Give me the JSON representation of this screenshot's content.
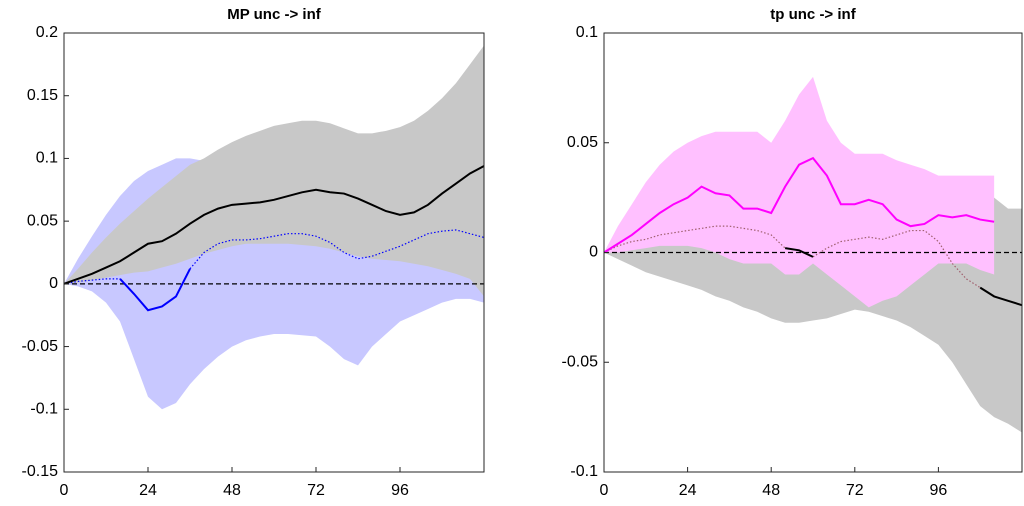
{
  "chart_data": [
    {
      "type": "line",
      "title": "MP unc -> inf",
      "x": [
        0,
        4,
        8,
        12,
        16,
        20,
        24,
        28,
        32,
        36,
        40,
        44,
        48,
        52,
        56,
        60,
        64,
        68,
        72,
        76,
        80,
        84,
        88,
        92,
        96,
        100,
        104,
        108,
        112,
        116,
        120
      ],
      "xlim": [
        0,
        120
      ],
      "xticks": [
        0,
        24,
        48,
        72,
        96
      ],
      "ylim": [
        -0.15,
        0.2
      ],
      "yticks": [
        -0.15,
        -0.1,
        -0.05,
        0,
        0.05,
        0.1,
        0.15,
        0.2
      ],
      "hline": 0,
      "bands": [
        {
          "color": "#c8c8ff",
          "upper": [
            0,
            0.02,
            0.038,
            0.055,
            0.07,
            0.082,
            0.09,
            0.095,
            0.1,
            0.1,
            0.098,
            0.095,
            0.092,
            0.09,
            0.09,
            0.09,
            0.088,
            0.086,
            0.083,
            0.08,
            0.078,
            0.076,
            0.075,
            0.076,
            0.078,
            0.08,
            0.082,
            0.08,
            0.078,
            0.075,
            0.072
          ],
          "lower": [
            0,
            -0.002,
            -0.006,
            -0.015,
            -0.03,
            -0.06,
            -0.09,
            -0.1,
            -0.095,
            -0.08,
            -0.068,
            -0.058,
            -0.05,
            -0.045,
            -0.042,
            -0.04,
            -0.04,
            -0.041,
            -0.042,
            -0.05,
            -0.06,
            -0.065,
            -0.05,
            -0.04,
            -0.03,
            -0.025,
            -0.02,
            -0.015,
            -0.012,
            -0.012,
            -0.015
          ]
        },
        {
          "color": "#c8c8c8",
          "upper": [
            0,
            0.012,
            0.025,
            0.037,
            0.048,
            0.058,
            0.068,
            0.077,
            0.086,
            0.095,
            0.1,
            0.107,
            0.113,
            0.118,
            0.122,
            0.126,
            0.128,
            0.13,
            0.13,
            0.128,
            0.124,
            0.12,
            0.12,
            0.122,
            0.125,
            0.13,
            0.138,
            0.148,
            0.16,
            0.175,
            0.19
          ],
          "lower": [
            0,
            0.001,
            0.003,
            0.005,
            0.007,
            0.009,
            0.01,
            0.013,
            0.016,
            0.02,
            0.024,
            0.027,
            0.03,
            0.032,
            0.032,
            0.032,
            0.032,
            0.031,
            0.03,
            0.028,
            0.025,
            0.022,
            0.02,
            0.019,
            0.018,
            0.016,
            0.014,
            0.011,
            0.008,
            0.004,
            -0.01
          ]
        }
      ],
      "series": [
        {
          "color": "#0000ff",
          "style": "dotted",
          "values": [
            0,
            0.002,
            0.003,
            0.004,
            0.004,
            null,
            null,
            null,
            null,
            0.012,
            0.025,
            0.032,
            0.035,
            0.035,
            0.036,
            0.038,
            0.04,
            0.04,
            0.038,
            0.033,
            0.025,
            0.02,
            0.022,
            0.026,
            0.03,
            0.035,
            0.04,
            0.042,
            0.043,
            0.04,
            0.037
          ]
        },
        {
          "color": "#000000",
          "style": "solid",
          "values": [
            0,
            0.004,
            0.008,
            0.013,
            0.018,
            0.025,
            0.032,
            0.034,
            0.04,
            0.048,
            0.055,
            0.06,
            0.063,
            0.064,
            0.065,
            0.067,
            0.07,
            0.073,
            0.075,
            0.073,
            0.072,
            0.068,
            0.063,
            0.058,
            0.055,
            0.057,
            0.063,
            0.072,
            0.08,
            0.088,
            0.094
          ]
        },
        {
          "color": "#0000ff",
          "style": "solid",
          "values": [
            null,
            null,
            null,
            null,
            0.004,
            -0.008,
            -0.021,
            -0.018,
            -0.01,
            0.012,
            null,
            null,
            null,
            null,
            null,
            null,
            null,
            null,
            null,
            null,
            null,
            null,
            null,
            null,
            null,
            null,
            null,
            null,
            null,
            null,
            null
          ]
        }
      ]
    },
    {
      "type": "line",
      "title": "tp unc -> inf",
      "x": [
        0,
        4,
        8,
        12,
        16,
        20,
        24,
        28,
        32,
        36,
        40,
        44,
        48,
        52,
        56,
        60,
        64,
        68,
        72,
        76,
        80,
        84,
        88,
        92,
        96,
        100,
        104,
        108,
        112,
        116,
        120
      ],
      "xlim": [
        0,
        120
      ],
      "xticks": [
        0,
        24,
        48,
        72,
        96
      ],
      "ylim": [
        -0.1,
        0.1
      ],
      "yticks": [
        -0.1,
        -0.05,
        0,
        0.05,
        0.1
      ],
      "hline": 0,
      "bands": [
        {
          "color": "#c8c8c8",
          "upper": [
            0,
            0.006,
            0.011,
            0.015,
            0.019,
            0.022,
            0.025,
            0.027,
            0.029,
            0.03,
            0.031,
            0.032,
            0.033,
            0.034,
            0.035,
            0.035,
            0.034,
            0.033,
            0.032,
            0.031,
            0.03,
            0.03,
            0.03,
            0.03,
            0.031,
            0.03,
            0.03,
            0.029,
            0.025,
            0.02,
            0.02
          ],
          "lower": [
            0,
            -0.003,
            -0.006,
            -0.009,
            -0.011,
            -0.013,
            -0.015,
            -0.017,
            -0.02,
            -0.022,
            -0.025,
            -0.027,
            -0.03,
            -0.032,
            -0.032,
            -0.031,
            -0.03,
            -0.028,
            -0.026,
            -0.027,
            -0.029,
            -0.031,
            -0.034,
            -0.038,
            -0.042,
            -0.05,
            -0.06,
            -0.07,
            -0.075,
            -0.078,
            -0.082
          ]
        },
        {
          "color": "#ffc0ff",
          "upper": [
            0,
            0.012,
            0.022,
            0.032,
            0.04,
            0.046,
            0.05,
            0.053,
            0.055,
            0.055,
            0.055,
            0.055,
            0.05,
            0.06,
            0.072,
            0.08,
            0.06,
            0.05,
            0.045,
            0.045,
            0.045,
            0.042,
            0.04,
            0.038,
            0.035,
            0.035,
            0.035,
            0.035,
            0.035,
            null,
            null
          ],
          "lower": [
            0,
            0,
            0.001,
            0.002,
            0.003,
            0.003,
            0.003,
            0.002,
            0,
            -0.003,
            -0.005,
            -0.005,
            -0.005,
            -0.01,
            -0.01,
            -0.005,
            -0.01,
            -0.015,
            -0.02,
            -0.025,
            -0.022,
            -0.02,
            -0.015,
            -0.01,
            -0.005,
            -0.005,
            -0.005,
            -0.008,
            -0.01,
            null,
            null
          ]
        }
      ],
      "series": [
        {
          "color": "#a0606e",
          "style": "dotted",
          "values": [
            0,
            0.003,
            0.005,
            0.006,
            0.008,
            0.009,
            0.01,
            0.011,
            0.012,
            0.012,
            0.011,
            0.01,
            0.008,
            0.002,
            null,
            -0.002,
            0.002,
            0.005,
            0.006,
            0.007,
            0.006,
            0.008,
            0.01,
            0.01,
            0.005,
            -0.005,
            -0.012,
            -0.016,
            null,
            null,
            null
          ]
        },
        {
          "color": "#ff00ff",
          "style": "solid",
          "values": [
            0,
            0.004,
            0.008,
            0.013,
            0.018,
            0.022,
            0.025,
            0.03,
            0.027,
            0.026,
            0.02,
            0.02,
            0.018,
            0.03,
            0.04,
            0.043,
            0.035,
            0.022,
            0.022,
            0.024,
            0.022,
            0.015,
            0.012,
            0.013,
            0.017,
            0.016,
            0.017,
            0.015,
            0.014,
            null,
            null
          ]
        },
        {
          "color": "#000000",
          "style": "solid",
          "values": [
            null,
            null,
            null,
            null,
            null,
            null,
            null,
            null,
            null,
            null,
            null,
            null,
            null,
            0.002,
            0.001,
            -0.002,
            null,
            null,
            null,
            null,
            null,
            null,
            null,
            null,
            null,
            null,
            null,
            -0.016,
            -0.02,
            -0.022,
            -0.024
          ]
        }
      ]
    }
  ]
}
